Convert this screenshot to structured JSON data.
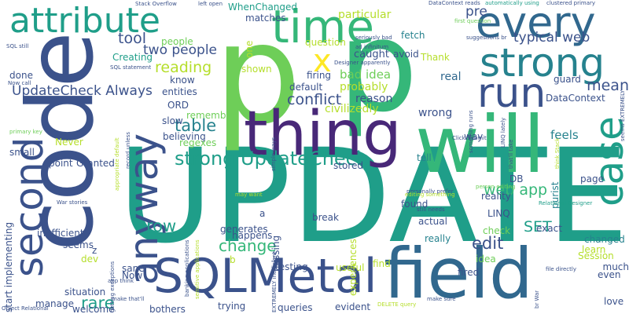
{
  "palette": {
    "navy": "#3b528b",
    "purple": "#482878",
    "dark": "#440154",
    "blue": "#31688e",
    "teal": "#26828e",
    "seagreen": "#1f9e89",
    "green": "#35b779",
    "lime": "#6ece58",
    "ygreen": "#b5de2b",
    "yellow": "#fde725"
  },
  "words": [
    {
      "text": "UPDATE",
      "color": "seagreen"
    },
    {
      "text": "code",
      "color": "navy"
    },
    {
      "text": "p",
      "color": "lime"
    },
    {
      "text": "p",
      "color": "green"
    },
    {
      "text": "will",
      "color": "green"
    },
    {
      "text": "field",
      "color": "blue"
    },
    {
      "text": "thing",
      "color": "purple"
    },
    {
      "text": "SQLMetal",
      "color": "navy"
    },
    {
      "text": "attribute",
      "color": "seagreen"
    },
    {
      "text": "time",
      "color": "green"
    },
    {
      "text": "every",
      "color": "blue"
    },
    {
      "text": "strong",
      "color": "teal"
    },
    {
      "text": "run",
      "color": "navy"
    },
    {
      "text": "second",
      "color": "navy"
    },
    {
      "text": "anyway",
      "color": "navy"
    },
    {
      "text": "case",
      "color": "seagreen"
    },
    {
      "text": "strong UpdateCheck",
      "color": "seagreen"
    },
    {
      "text": "UpdateCheck Always",
      "color": "navy"
    },
    {
      "text": "x",
      "color": "yellow"
    },
    {
      "text": "two people",
      "color": "navy"
    },
    {
      "text": "reading",
      "color": "ygreen"
    },
    {
      "text": "tool",
      "color": "navy"
    },
    {
      "text": "conflict",
      "color": "navy"
    },
    {
      "text": "table",
      "color": "teal"
    },
    {
      "text": "change",
      "color": "green"
    },
    {
      "text": "row",
      "color": "seagreen"
    },
    {
      "text": "rare",
      "color": "seagreen"
    },
    {
      "text": "edit",
      "color": "navy"
    },
    {
      "text": "mean",
      "color": "navy"
    },
    {
      "text": "typical web",
      "color": "navy"
    },
    {
      "text": "web app",
      "color": "green"
    },
    {
      "text": "SET",
      "color": "seagreen"
    },
    {
      "text": "pre",
      "color": "navy"
    },
    {
      "text": "bad idea",
      "color": "lime"
    },
    {
      "text": "civilizedly",
      "color": "ygreen"
    },
    {
      "text": "DataContext",
      "color": "navy"
    },
    {
      "text": "guard",
      "color": "navy"
    },
    {
      "text": "feels",
      "color": "teal"
    },
    {
      "text": "real",
      "color": "blue"
    },
    {
      "text": "wrong",
      "color": "navy"
    },
    {
      "text": "reason",
      "color": "navy"
    },
    {
      "text": "probably",
      "color": "ygreen"
    },
    {
      "text": "default",
      "color": "navy"
    },
    {
      "text": "firing",
      "color": "navy"
    },
    {
      "text": "caught",
      "color": "navy"
    },
    {
      "text": "Thank",
      "color": "ygreen"
    },
    {
      "text": "fetch",
      "color": "teal"
    },
    {
      "text": "avoid",
      "color": "navy"
    },
    {
      "text": "question",
      "color": "ygreen"
    },
    {
      "text": "particular",
      "color": "ygreen"
    },
    {
      "text": "matches",
      "color": "navy"
    },
    {
      "text": "WhenChanged",
      "color": "seagreen"
    },
    {
      "text": "shown",
      "color": "ygreen"
    },
    {
      "text": "one",
      "color": "ygreen"
    },
    {
      "text": "people",
      "color": "lime"
    },
    {
      "text": "Creating",
      "color": "seagreen"
    },
    {
      "text": "know",
      "color": "navy"
    },
    {
      "text": "entities",
      "color": "navy"
    },
    {
      "text": "ORD",
      "color": "navy"
    },
    {
      "text": "remember",
      "color": "lime"
    },
    {
      "text": "slow",
      "color": "navy"
    },
    {
      "text": "believing",
      "color": "navy"
    },
    {
      "text": "regexes",
      "color": "lime"
    },
    {
      "text": "Never",
      "color": "ygreen"
    },
    {
      "text": "small",
      "color": "navy"
    },
    {
      "text": "point",
      "color": "navy"
    },
    {
      "text": "Granted",
      "color": "navy"
    },
    {
      "text": "done",
      "color": "navy"
    },
    {
      "text": "stored",
      "color": "navy"
    },
    {
      "text": "tell",
      "color": "teal"
    },
    {
      "text": "DB",
      "color": "navy"
    },
    {
      "text": "found",
      "color": "navy"
    },
    {
      "text": "actual",
      "color": "navy"
    },
    {
      "text": "reality",
      "color": "navy"
    },
    {
      "text": "LINQ",
      "color": "navy"
    },
    {
      "text": "check",
      "color": "lime"
    },
    {
      "text": "exact",
      "color": "navy"
    },
    {
      "text": "page",
      "color": "navy"
    },
    {
      "text": "learn",
      "color": "ygreen"
    },
    {
      "text": "changed",
      "color": "teal"
    },
    {
      "text": "Session",
      "color": "ygreen"
    },
    {
      "text": "much",
      "color": "navy"
    },
    {
      "text": "even",
      "color": "navy"
    },
    {
      "text": "love",
      "color": "navy"
    },
    {
      "text": "purist",
      "color": "teal"
    },
    {
      "text": "generates",
      "color": "navy"
    },
    {
      "text": "happens",
      "color": "navy"
    },
    {
      "text": "break",
      "color": "navy"
    },
    {
      "text": "missing",
      "color": "navy"
    },
    {
      "text": "testing",
      "color": "navy"
    },
    {
      "text": "useful",
      "color": "ygreen"
    },
    {
      "text": "queries",
      "color": "navy"
    },
    {
      "text": "evident",
      "color": "navy"
    },
    {
      "text": "trying",
      "color": "navy"
    },
    {
      "text": "bothers",
      "color": "navy"
    },
    {
      "text": "welcome",
      "color": "navy"
    },
    {
      "text": "manage",
      "color": "navy"
    },
    {
      "text": "situation",
      "color": "navy"
    },
    {
      "text": "sane",
      "color": "navy"
    },
    {
      "text": "Now",
      "color": "navy"
    },
    {
      "text": "dev",
      "color": "ygreen"
    },
    {
      "text": "seems",
      "color": "navy"
    },
    {
      "text": "inefficient",
      "color": "navy"
    },
    {
      "text": "start implementing",
      "color": "navy"
    },
    {
      "text": "find",
      "color": "ygreen"
    },
    {
      "text": "really",
      "color": "teal"
    },
    {
      "text": "idea",
      "color": "lime"
    },
    {
      "text": "fired",
      "color": "navy"
    },
    {
      "text": "experiences",
      "color": "ygreen"
    },
    {
      "text": "way",
      "color": "navy"
    },
    {
      "text": "z",
      "color": "navy"
    },
    {
      "text": "b",
      "color": "ygreen"
    },
    {
      "text": "a",
      "color": "navy"
    },
    {
      "text": "Stack Overflow",
      "color": "navy"
    },
    {
      "text": "left open",
      "color": "navy"
    },
    {
      "text": "DataContext reads",
      "color": "navy"
    },
    {
      "text": "automatically using",
      "color": "seagreen"
    },
    {
      "text": "clustered primary",
      "color": "navy"
    },
    {
      "text": "first question",
      "color": "lime"
    },
    {
      "text": "suggestions br",
      "color": "navy"
    },
    {
      "text": "seriously bad",
      "color": "navy"
    },
    {
      "text": "ad infinitum",
      "color": "navy"
    },
    {
      "text": "Designer apparently",
      "color": "navy"
    },
    {
      "text": "SQL still",
      "color": "navy"
    },
    {
      "text": "SQL statement",
      "color": "navy"
    },
    {
      "text": "Now call",
      "color": "navy"
    },
    {
      "text": "primary key",
      "color": "lime"
    },
    {
      "text": "War stories",
      "color": "navy"
    },
    {
      "text": "Click Submit",
      "color": "navy"
    },
    {
      "text": "personally prefer",
      "color": "navy"
    },
    {
      "text": "still needs",
      "color": "navy"
    },
    {
      "text": "Relational Designer",
      "color": "seagreen"
    },
    {
      "text": "person editing",
      "color": "lime"
    },
    {
      "text": "file directly",
      "color": "navy"
    },
    {
      "text": "app think",
      "color": "navy"
    },
    {
      "text": "make that'll",
      "color": "navy"
    },
    {
      "text": "make sure",
      "color": "navy"
    },
    {
      "text": "DELETE query",
      "color": "ygreen"
    },
    {
      "text": "Object Relational",
      "color": "navy"
    },
    {
      "text": "may want",
      "color": "ygreen"
    },
    {
      "text": "EXTREMELY inefficient",
      "color": "navy"
    },
    {
      "text": "seems EXTREMELY",
      "color": "navy"
    },
    {
      "text": "think Stack",
      "color": "ygreen"
    },
    {
      "text": "that'll take",
      "color": "navy"
    },
    {
      "text": "something runs",
      "color": "navy"
    },
    {
      "text": "LINQ lately",
      "color": "navy"
    },
    {
      "text": "br War",
      "color": "navy"
    },
    {
      "text": "getting exceptions",
      "color": "navy"
    },
    {
      "text": "banking applications",
      "color": "navy"
    },
    {
      "text": "sensitive applications",
      "color": "ygreen"
    },
    {
      "text": "appropriate default",
      "color": "ygreen"
    },
    {
      "text": "record unless",
      "color": "navy"
    },
    {
      "text": "simple ways",
      "color": "navy"
    },
    {
      "text": "editing something",
      "color": "ygreen"
    }
  ]
}
